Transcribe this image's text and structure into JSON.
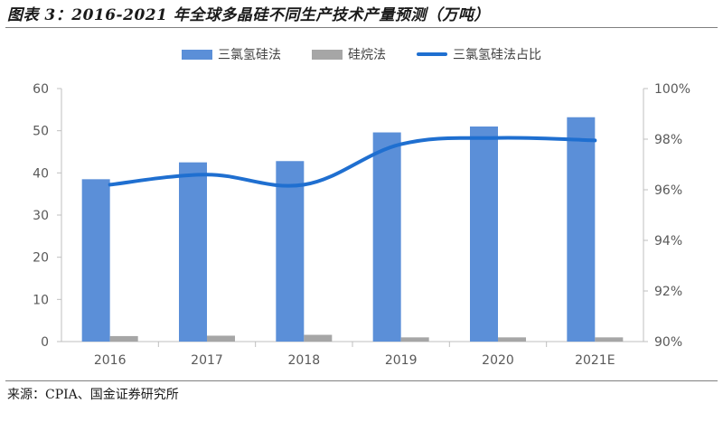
{
  "page": {
    "title": "图表 3：2016-2021 年全球多晶硅不同生产技术产量预测（万吨）",
    "source": "来源：CPIA、国金证券研究所"
  },
  "chart_data": {
    "type": "bar",
    "categories": [
      "2016",
      "2017",
      "2018",
      "2019",
      "2020",
      "2021E"
    ],
    "series": [
      {
        "name": "三氯氢硅法",
        "type": "bar",
        "axis": "left",
        "color": "#5b8fd8",
        "values": [
          38.5,
          42.5,
          42.8,
          49.6,
          51.0,
          53.2
        ]
      },
      {
        "name": "硅烷法",
        "type": "bar",
        "axis": "left",
        "color": "#a6a6a6",
        "values": [
          1.3,
          1.4,
          1.6,
          1.0,
          1.0,
          1.0
        ]
      },
      {
        "name": "三氯氢硅法占比",
        "type": "line",
        "axis": "right",
        "color": "#1f6fd0",
        "values": [
          96.2,
          96.6,
          96.2,
          97.8,
          98.05,
          97.95
        ]
      }
    ],
    "y_left": {
      "range": [
        0,
        60
      ],
      "ticks": [
        "0",
        "10",
        "20",
        "30",
        "40",
        "50",
        "60"
      ]
    },
    "y_right": {
      "range": [
        90,
        100
      ],
      "ticks": [
        "90%",
        "92%",
        "94%",
        "96%",
        "98%",
        "100%"
      ]
    },
    "grid": false,
    "legend": "top-center"
  }
}
